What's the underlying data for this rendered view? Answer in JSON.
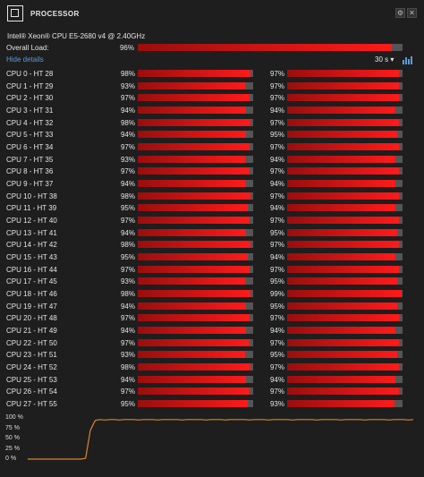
{
  "header": {
    "title": "PROCESSOR",
    "icon": "processor-icon",
    "settings_icon": "gear-icon",
    "close_icon": "close-icon"
  },
  "cpu_name": "Intel® Xeon® CPU E5-2680 v4 @ 2.40GHz",
  "overall": {
    "label": "Overall Load:",
    "value": "96%",
    "level": 96
  },
  "toolbar": {
    "details_link": "Hide details",
    "range": "30 s",
    "range_caret": "▾",
    "chart_icon": "bar-chart-icon"
  },
  "cores": [
    {
      "label": "CPU 0 - HT 28",
      "a": "98%",
      "av": 98,
      "b": "97%",
      "bv": 97
    },
    {
      "label": "CPU 1 - HT 29",
      "a": "93%",
      "av": 93,
      "b": "97%",
      "bv": 97
    },
    {
      "label": "CPU 2 - HT 30",
      "a": "97%",
      "av": 97,
      "b": "97%",
      "bv": 97
    },
    {
      "label": "CPU 3 - HT 31",
      "a": "94%",
      "av": 94,
      "b": "94%",
      "bv": 94
    },
    {
      "label": "CPU 4 - HT 32",
      "a": "98%",
      "av": 98,
      "b": "97%",
      "bv": 97
    },
    {
      "label": "CPU 5 - HT 33",
      "a": "94%",
      "av": 94,
      "b": "95%",
      "bv": 95
    },
    {
      "label": "CPU 6 - HT 34",
      "a": "97%",
      "av": 97,
      "b": "97%",
      "bv": 97
    },
    {
      "label": "CPU 7 - HT 35",
      "a": "93%",
      "av": 93,
      "b": "94%",
      "bv": 94
    },
    {
      "label": "CPU 8 - HT 36",
      "a": "97%",
      "av": 97,
      "b": "97%",
      "bv": 97
    },
    {
      "label": "CPU 9 - HT 37",
      "a": "94%",
      "av": 94,
      "b": "94%",
      "bv": 94
    },
    {
      "label": "CPU 10 - HT 38",
      "a": "98%",
      "av": 98,
      "b": "97%",
      "bv": 97
    },
    {
      "label": "CPU 11 - HT 39",
      "a": "95%",
      "av": 95,
      "b": "94%",
      "bv": 94
    },
    {
      "label": "CPU 12 - HT 40",
      "a": "97%",
      "av": 97,
      "b": "97%",
      "bv": 97
    },
    {
      "label": "CPU 13 - HT 41",
      "a": "94%",
      "av": 94,
      "b": "95%",
      "bv": 95
    },
    {
      "label": "CPU 14 - HT 42",
      "a": "98%",
      "av": 98,
      "b": "97%",
      "bv": 97
    },
    {
      "label": "CPU 15 - HT 43",
      "a": "95%",
      "av": 95,
      "b": "94%",
      "bv": 94
    },
    {
      "label": "CPU 16 - HT 44",
      "a": "97%",
      "av": 97,
      "b": "97%",
      "bv": 97
    },
    {
      "label": "CPU 17 - HT 45",
      "a": "93%",
      "av": 93,
      "b": "95%",
      "bv": 95
    },
    {
      "label": "CPU 18 - HT 46",
      "a": "98%",
      "av": 98,
      "b": "99%",
      "bv": 99
    },
    {
      "label": "CPU 19 - HT 47",
      "a": "94%",
      "av": 94,
      "b": "95%",
      "bv": 95
    },
    {
      "label": "CPU 20 - HT 48",
      "a": "97%",
      "av": 97,
      "b": "97%",
      "bv": 97
    },
    {
      "label": "CPU 21 - HT 49",
      "a": "94%",
      "av": 94,
      "b": "94%",
      "bv": 94
    },
    {
      "label": "CPU 22 - HT 50",
      "a": "97%",
      "av": 97,
      "b": "97%",
      "bv": 97
    },
    {
      "label": "CPU 23 - HT 51",
      "a": "93%",
      "av": 93,
      "b": "95%",
      "bv": 95
    },
    {
      "label": "CPU 24 - HT 52",
      "a": "98%",
      "av": 98,
      "b": "97%",
      "bv": 97
    },
    {
      "label": "CPU 25 - HT 53",
      "a": "94%",
      "av": 94,
      "b": "94%",
      "bv": 94
    },
    {
      "label": "CPU 26 - HT 54",
      "a": "97%",
      "av": 97,
      "b": "97%",
      "bv": 97
    },
    {
      "label": "CPU 27 - HT 55",
      "a": "95%",
      "av": 95,
      "b": "93%",
      "bv": 93
    }
  ],
  "graph": {
    "y_ticks": [
      "100 %",
      "75 %",
      "50 %",
      "25 %",
      "0 %"
    ],
    "line_color": "#d4882a",
    "samples": [
      0,
      0,
      0,
      0,
      0,
      0,
      0,
      0,
      0,
      0,
      0,
      0,
      2,
      70,
      94,
      96,
      95,
      96,
      96,
      95,
      96,
      96,
      96,
      95,
      96,
      96,
      96,
      95,
      96,
      96,
      96,
      96,
      95,
      96,
      96,
      96,
      96,
      95,
      96,
      96,
      96,
      95,
      96,
      96,
      96,
      96,
      95,
      96,
      96,
      96,
      95,
      96,
      96,
      96,
      96,
      95,
      96,
      96,
      96,
      96,
      95,
      96,
      96,
      96,
      96,
      95,
      96,
      96,
      96,
      96,
      95,
      96,
      96,
      96,
      96,
      95,
      96,
      96,
      96,
      95,
      96
    ]
  },
  "colors": {
    "bar_high": "#ff1a1a",
    "bar_low": "#9a0e0e",
    "bar_track": "#555555",
    "link": "#5b9bd5"
  }
}
